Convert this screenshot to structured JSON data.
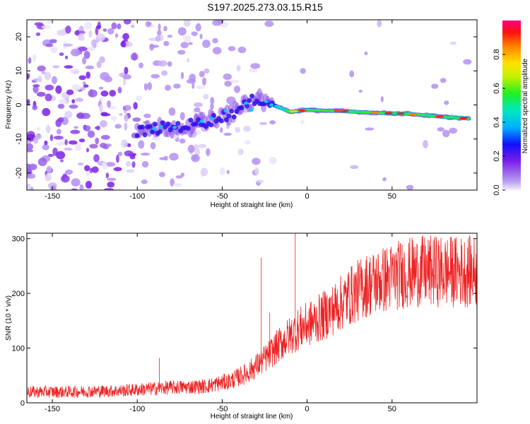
{
  "title": "S197.2025.273.03.15.R15",
  "chart_data": [
    {
      "type": "heatmap",
      "name": "spectrogram",
      "xlabel": "Height of straight line (km)",
      "ylabel": "Frequency (Hz)",
      "xlim": [
        -165,
        100
      ],
      "ylim": [
        -25,
        25
      ],
      "xticks": [
        "-150",
        "-100",
        "-50",
        "0",
        "50"
      ],
      "xtick_values": [
        -150,
        -100,
        -50,
        0,
        50
      ],
      "yticks": [
        "-20",
        "-10",
        "0",
        "10",
        "20"
      ],
      "ytick_values": [
        -20,
        -10,
        0,
        10,
        20
      ],
      "colorbar": {
        "label": "Normalized spectral amplitude",
        "range": [
          0,
          1
        ],
        "ticks": [
          "0.0",
          "0.2",
          "0.4",
          "0.6",
          "0.8"
        ],
        "tick_values": [
          0.0,
          0.2,
          0.4,
          0.6,
          0.8
        ]
      },
      "signal_ridge": {
        "x": [
          -100,
          -90,
          -80,
          -70,
          -60,
          -50,
          -40,
          -30,
          -20,
          -10,
          0,
          20,
          40,
          60,
          80,
          95
        ],
        "frequency": [
          -8,
          -7,
          -6.5,
          -6,
          -5,
          -3.5,
          -1.5,
          2,
          0,
          -2,
          -1.5,
          -1.8,
          -2.3,
          -2.6,
          -3.5,
          -4
        ]
      }
    },
    {
      "type": "line",
      "name": "snr",
      "color": "#ee2222",
      "xlabel": "Height of straight line (km)",
      "ylabel": "SNR (10 * v/v)",
      "xlim": [
        -165,
        100
      ],
      "ylim": [
        0,
        310
      ],
      "xticks": [
        "-150",
        "-100",
        "-50",
        "0",
        "50"
      ],
      "xtick_values": [
        -150,
        -100,
        -50,
        0,
        50
      ],
      "yticks": [
        "0",
        "100",
        "200",
        "300"
      ],
      "ytick_values": [
        0,
        100,
        200,
        300
      ],
      "trend": {
        "x": [
          -165,
          -140,
          -110,
          -95,
          -80,
          -60,
          -45,
          -35,
          -25,
          -15,
          -5,
          5,
          15,
          25,
          35,
          45,
          55,
          65,
          75,
          85,
          100
        ],
        "y": [
          20,
          20,
          22,
          25,
          28,
          30,
          40,
          55,
          80,
          110,
          135,
          150,
          170,
          195,
          215,
          225,
          235,
          240,
          240,
          240,
          240
        ]
      },
      "spikes": [
        {
          "x": -87,
          "y": 82
        },
        {
          "x": -27,
          "y": 265
        },
        {
          "x": -22,
          "y": 165
        },
        {
          "x": -7,
          "y": 310
        },
        {
          "x": 75,
          "y": 300
        }
      ]
    }
  ]
}
